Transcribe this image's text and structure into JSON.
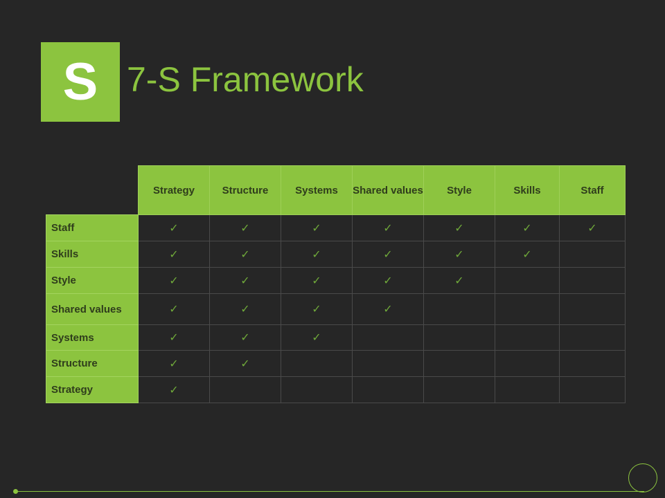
{
  "logo_letter": "S",
  "title": "7-S Framework",
  "columns": [
    "Strategy",
    "Structure",
    "Systems",
    "Shared values",
    "Style",
    "Skills",
    "Staff"
  ],
  "rows": [
    {
      "label": "Staff",
      "checks": [
        true,
        true,
        true,
        true,
        true,
        true,
        true
      ]
    },
    {
      "label": "Skills",
      "checks": [
        true,
        true,
        true,
        true,
        true,
        true,
        false
      ]
    },
    {
      "label": "Style",
      "checks": [
        true,
        true,
        true,
        true,
        true,
        false,
        false
      ]
    },
    {
      "label": "Shared values",
      "checks": [
        true,
        true,
        true,
        true,
        false,
        false,
        false
      ]
    },
    {
      "label": "Systems",
      "checks": [
        true,
        true,
        true,
        false,
        false,
        false,
        false
      ]
    },
    {
      "label": "Structure",
      "checks": [
        true,
        true,
        false,
        false,
        false,
        false,
        false
      ]
    },
    {
      "label": "Strategy",
      "checks": [
        true,
        false,
        false,
        false,
        false,
        false,
        false
      ]
    }
  ],
  "check_glyph": "✓",
  "colors": {
    "accent": "#8cc43f",
    "background": "#262626"
  }
}
